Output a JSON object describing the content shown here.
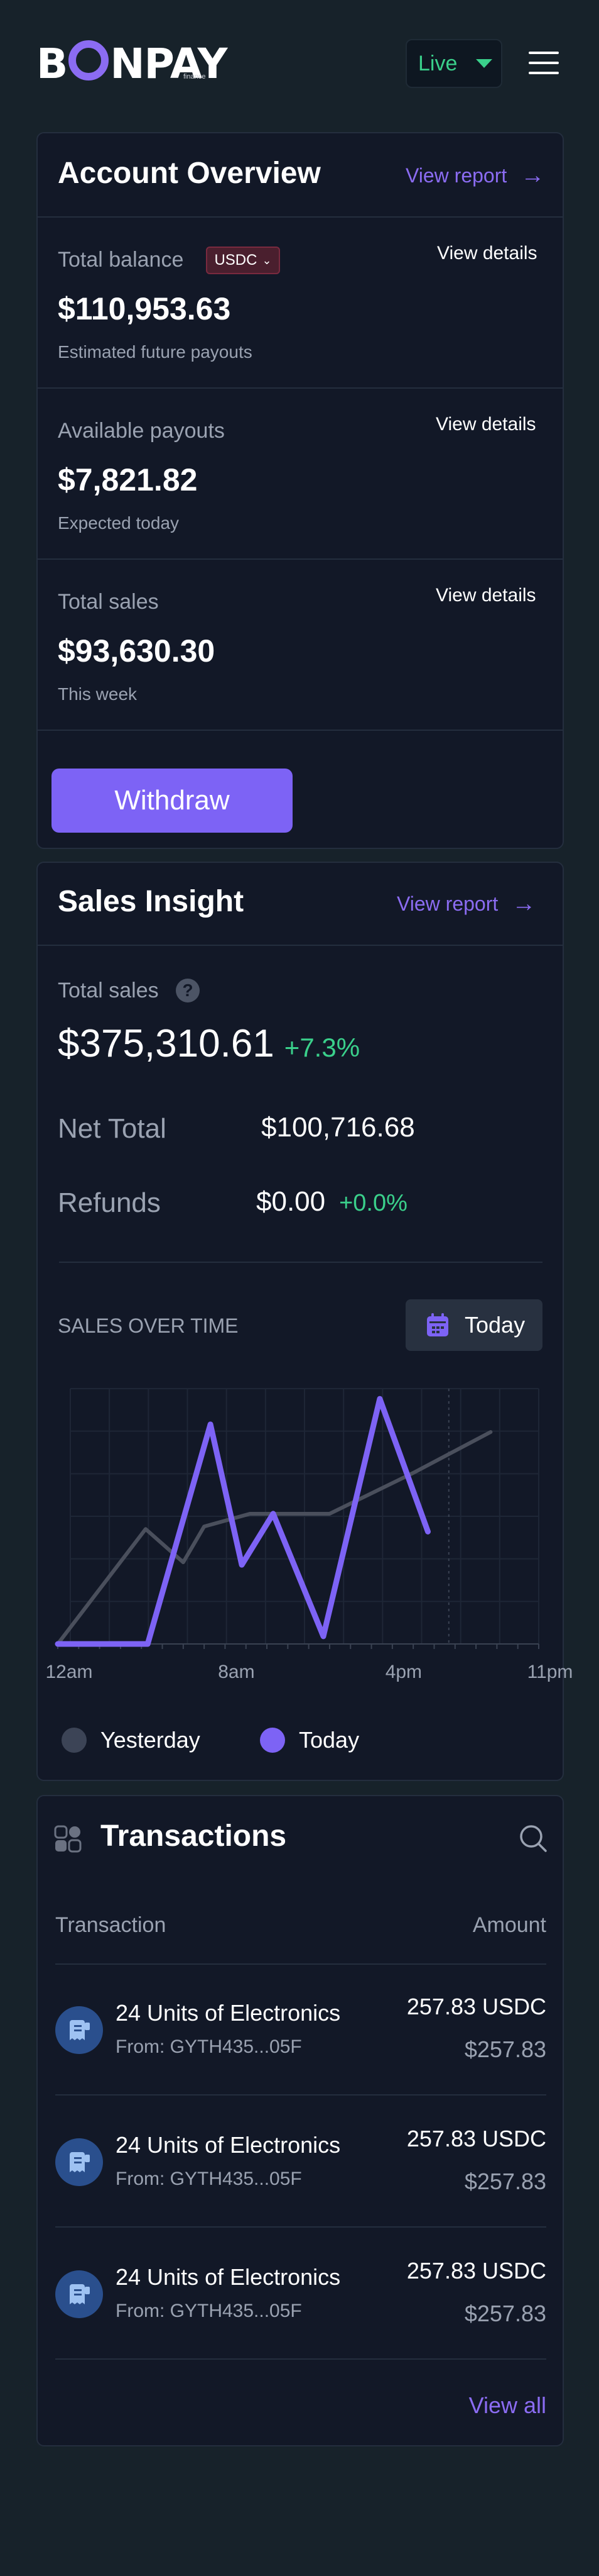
{
  "header": {
    "logo_prefix": "B",
    "logo_suffix": "NPAY",
    "logo_sub": "finance",
    "env_label": "Live"
  },
  "overview": {
    "title": "Account Overview",
    "view_report": "View report",
    "balance": {
      "label": "Total balance",
      "currency_badge": "USDC",
      "value": "$110,953.63",
      "sub": "Estimated future payouts",
      "view_details": "View details"
    },
    "payouts": {
      "label": "Available payouts",
      "value": "$7,821.82",
      "sub": "Expected today",
      "view_details": "View details"
    },
    "sales": {
      "label": "Total sales",
      "value": "$93,630.30",
      "sub": "This week",
      "view_details": "View details"
    },
    "withdraw_label": "Withdraw"
  },
  "insight": {
    "title": "Sales Insight",
    "view_report": "View report",
    "total_sales_label": "Total sales",
    "help_glyph": "?",
    "total_sales_value": "$375,310.61",
    "total_sales_change": "+7.3%",
    "net_total_label": "Net Total",
    "net_total_value": "$100,716.68",
    "refunds_label": "Refunds",
    "refunds_value": "$0.00",
    "refunds_change": "+0.0%",
    "chart_heading": "SALES OVER TIME",
    "period_label": "Today",
    "legend_yesterday": "Yesterday",
    "legend_today": "Today",
    "colors": {
      "today": "#7d63f5",
      "yesterday": "#4a4f5c",
      "positive": "#3ad08b",
      "accent": "#8b6cf2"
    }
  },
  "chart_data": {
    "type": "line",
    "x_ticks": [
      "12am",
      "8am",
      "4pm",
      "11pm"
    ],
    "grid": true,
    "legend": "bottom-left",
    "series": [
      {
        "name": "Yesterday",
        "x": [
          0.0,
          4.2,
          6.0,
          7.0,
          9.2,
          13.0,
          17.0,
          20.7
        ],
        "y": [
          0,
          45,
          32,
          46,
          51,
          51,
          67,
          83
        ]
      },
      {
        "name": "Today",
        "x": [
          0.0,
          4.3,
          7.3,
          8.8,
          10.3,
          12.7,
          15.4,
          17.7
        ],
        "y": [
          0,
          0,
          86,
          31,
          51,
          3,
          96,
          44
        ]
      }
    ]
  },
  "transactions": {
    "title": "Transactions",
    "col_transaction": "Transaction",
    "col_amount": "Amount",
    "rows": [
      {
        "title": "24 Units of Electronics",
        "from": "From: GYTH435...05F",
        "amount": "257.83 USDC",
        "usd": "$257.83"
      },
      {
        "title": "24 Units of Electronics",
        "from": "From: GYTH435...05F",
        "amount": "257.83 USDC",
        "usd": "$257.83"
      },
      {
        "title": "24 Units of Electronics",
        "from": "From: GYTH435...05F",
        "amount": "257.83 USDC",
        "usd": "$257.83"
      }
    ],
    "view_all": "View all"
  }
}
